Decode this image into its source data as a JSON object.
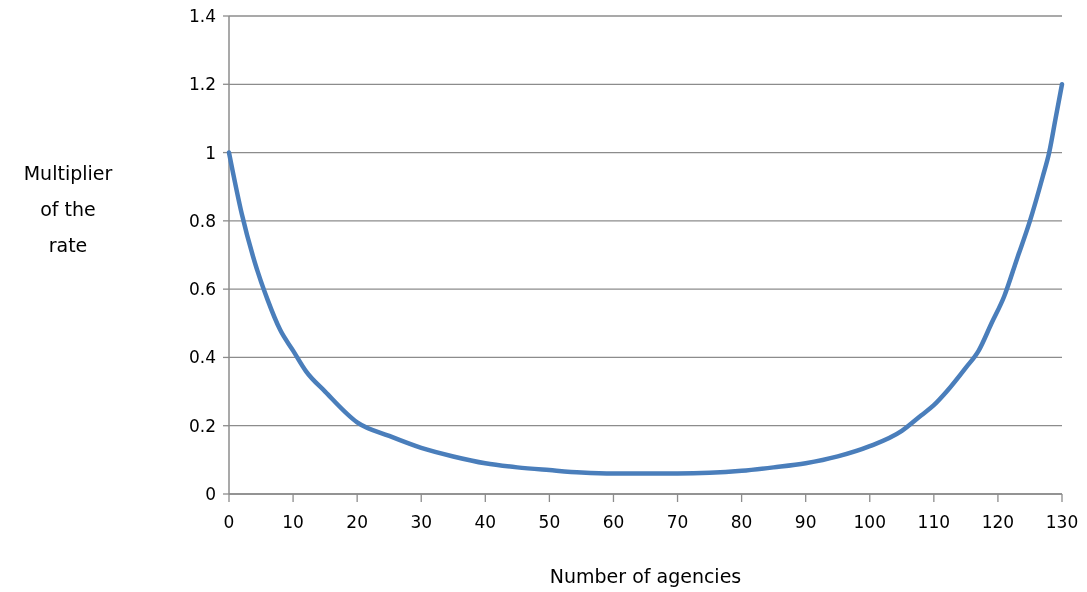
{
  "chart_data": {
    "type": "line",
    "xlabel": "Number of agencies",
    "ylabel": "Multiplier of the rate",
    "xlim": [
      0,
      130
    ],
    "xticks": [
      0,
      10,
      20,
      30,
      40,
      50,
      60,
      70,
      80,
      90,
      100,
      110,
      120,
      130
    ],
    "ylim": [
      0,
      1.4
    ],
    "yticks": [
      0,
      0.2,
      0.4,
      0.6,
      0.8,
      1,
      1.2,
      1.4
    ],
    "grid": "y",
    "marker": "none",
    "line_style": "solid",
    "series": [
      {
        "color": "#4a7ebb",
        "x": [
          0,
          2,
          4,
          6,
          8,
          10,
          12,
          15,
          20,
          25,
          30,
          35,
          40,
          45,
          50,
          55,
          60,
          65,
          70,
          75,
          80,
          85,
          90,
          95,
          100,
          105,
          108,
          110,
          112,
          115,
          117,
          119,
          121,
          123,
          125,
          127,
          128,
          129,
          130
        ],
        "values": [
          1.0,
          0.82,
          0.68,
          0.57,
          0.48,
          0.42,
          0.36,
          0.3,
          0.21,
          0.17,
          0.135,
          0.11,
          0.09,
          0.078,
          0.07,
          0.063,
          0.06,
          0.06,
          0.06,
          0.062,
          0.068,
          0.078,
          0.09,
          0.11,
          0.14,
          0.185,
          0.23,
          0.26,
          0.3,
          0.37,
          0.42,
          0.5,
          0.58,
          0.69,
          0.8,
          0.93,
          1.0,
          1.1,
          1.2
        ]
      }
    ]
  }
}
